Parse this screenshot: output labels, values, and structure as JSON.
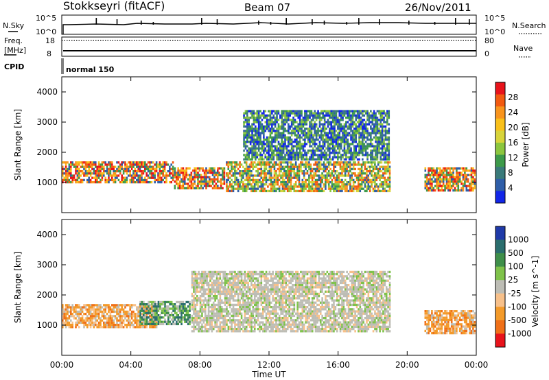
{
  "header": {
    "station": "Stokkseyri (fitACF)",
    "beam": "Beam 07",
    "date": "26/Nov/2011"
  },
  "sky_panel": {
    "left_label": "N.Sky",
    "left_ticks": [
      "10^5",
      "10^0"
    ],
    "right_label": "N.Search",
    "right_ticks": [
      "10^5",
      "10^0"
    ]
  },
  "freq_panel": {
    "left_label_1": "Freq.",
    "left_label_2": "[MHz]",
    "left_ticks": [
      "18",
      "8"
    ],
    "right_label": "Nave",
    "right_ticks": [
      "80",
      "0"
    ]
  },
  "cpid_panel": {
    "label": "CPID",
    "mode": "normal 150"
  },
  "chart_data": [
    {
      "type": "heatmap",
      "title": "Power",
      "xlabel": "Time UT",
      "ylabel": "Slant Range [km]",
      "x_ticks": [
        "00:00",
        "04:00",
        "08:00",
        "12:00",
        "16:00",
        "20:00",
        "00:00"
      ],
      "y_ticks": [
        "1000",
        "2000",
        "3000",
        "4000"
      ],
      "ylim": [
        0,
        4500
      ],
      "colorbar": {
        "label": "Power [dB]",
        "ticks": [
          "28",
          "24",
          "20",
          "16",
          "12",
          "8",
          "4"
        ],
        "colors": [
          "#e8131b",
          "#f25a10",
          "#f8941d",
          "#f9c01a",
          "#d8d43a",
          "#8cc63e",
          "#3d9a4a",
          "#3a7a7a",
          "#2f5ea8",
          "#1226e8"
        ]
      },
      "bands": [
        {
          "x": [
            0,
            6.5
          ],
          "y": [
            950,
            1700
          ],
          "level": "high"
        },
        {
          "x": [
            6.5,
            9.5
          ],
          "y": [
            800,
            1500
          ],
          "level": "high"
        },
        {
          "x": [
            9.5,
            19.0
          ],
          "y": [
            700,
            1700
          ],
          "level": "mid"
        },
        {
          "x": [
            10.5,
            19.0
          ],
          "y": [
            1700,
            3400
          ],
          "level": "low"
        },
        {
          "x": [
            21.0,
            24.0
          ],
          "y": [
            700,
            1500
          ],
          "level": "high"
        }
      ]
    },
    {
      "type": "heatmap",
      "title": "Velocity",
      "xlabel": "Time UT",
      "ylabel": "Slant Range [km]",
      "x_ticks": [
        "00:00",
        "04:00",
        "08:00",
        "12:00",
        "16:00",
        "20:00",
        "00:00"
      ],
      "y_ticks": [
        "1000",
        "2000",
        "3000",
        "4000"
      ],
      "ylim": [
        0,
        4500
      ],
      "colorbar": {
        "label": "Velocity [m s^-1]",
        "ticks": [
          "1000",
          "500",
          "100",
          "25",
          "-25",
          "-100",
          "-500",
          "-1000"
        ],
        "colors": [
          "#1f3aa8",
          "#2b6e6e",
          "#3f8f4a",
          "#7fc24a",
          "#bdbdb5",
          "#f7c08a",
          "#f39a2a",
          "#f07018",
          "#e8131b"
        ]
      },
      "bands": [
        {
          "x": [
            0,
            5.5
          ],
          "y": [
            900,
            1700
          ],
          "level": "toward-orange"
        },
        {
          "x": [
            4.5,
            7.5
          ],
          "y": [
            1000,
            1800
          ],
          "level": "away-green"
        },
        {
          "x": [
            7.5,
            19.0
          ],
          "y": [
            800,
            2800
          ],
          "level": "near-zero-grey"
        },
        {
          "x": [
            21.0,
            24.0
          ],
          "y": [
            700,
            1500
          ],
          "level": "toward-orange"
        }
      ]
    }
  ]
}
